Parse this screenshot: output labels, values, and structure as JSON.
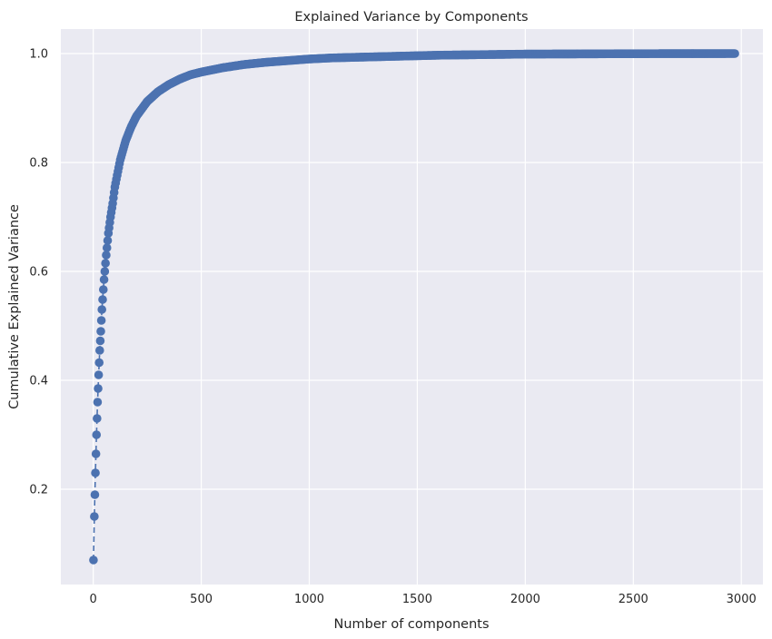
{
  "chart_data": {
    "type": "line",
    "title": "Explained Variance by Components",
    "xlabel": "Number of components",
    "ylabel": "Cumulative Explained Variance",
    "xlim": [
      -150,
      3100
    ],
    "ylim": [
      0.025,
      1.045
    ],
    "xticks": [
      0,
      500,
      1000,
      1500,
      2000,
      2500,
      3000
    ],
    "yticks": [
      0.2,
      0.4,
      0.6,
      0.8,
      1.0
    ],
    "grid": true,
    "style": {
      "background": "#eaeaf2",
      "grid_color": "#ffffff",
      "series_color": "#4c72b0"
    },
    "marker": "circle",
    "linestyle": "dashed",
    "series": [
      {
        "x": [
          1,
          5,
          10,
          15,
          20,
          25,
          30,
          35,
          40,
          50,
          60,
          70,
          80,
          90,
          100,
          125,
          150,
          175,
          200,
          250,
          300,
          350,
          400,
          450,
          500,
          600,
          700,
          800,
          900,
          1000,
          1100,
          1200,
          1300,
          1400,
          1500,
          1600,
          1700,
          1800,
          1900,
          2000,
          2200,
          2400,
          2600,
          2800,
          2970
        ],
        "y": [
          0.07,
          0.15,
          0.23,
          0.3,
          0.36,
          0.41,
          0.455,
          0.49,
          0.53,
          0.585,
          0.63,
          0.67,
          0.7,
          0.725,
          0.755,
          0.805,
          0.84,
          0.865,
          0.885,
          0.912,
          0.93,
          0.943,
          0.953,
          0.961,
          0.966,
          0.974,
          0.98,
          0.984,
          0.987,
          0.99,
          0.992,
          0.993,
          0.994,
          0.995,
          0.996,
          0.997,
          0.9975,
          0.998,
          0.9985,
          0.999,
          0.9993,
          0.9996,
          0.9998,
          0.9999,
          1.0
        ]
      }
    ]
  }
}
